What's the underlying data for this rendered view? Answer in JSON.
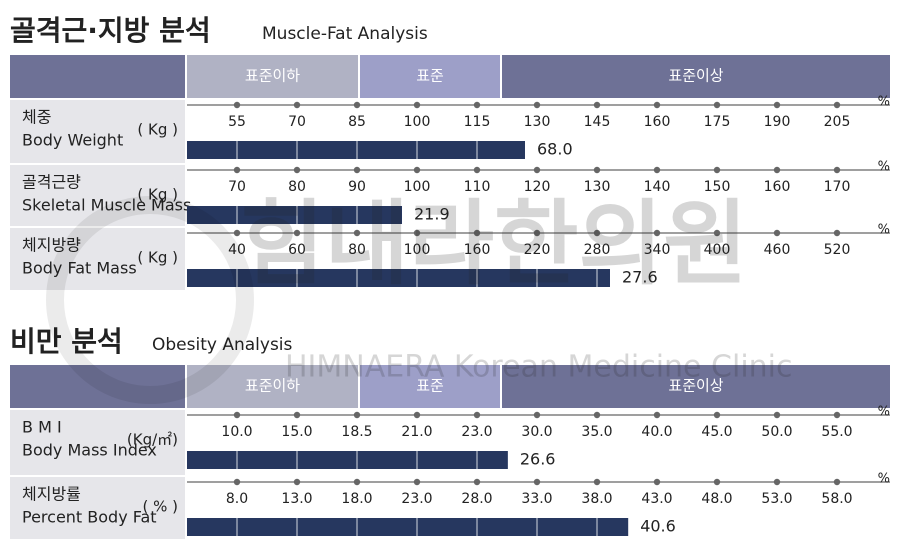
{
  "watermark": {
    "title": "힘내라한의원",
    "subtitle": "HIMNAERA Korean Medicine Clinic"
  },
  "percent_sign": "%",
  "sections": [
    {
      "title": "골격근·지방 분석",
      "subtitle": "Muscle-Fat Analysis",
      "header": [
        "표준이하",
        "표준",
        "표준이상"
      ],
      "rows": [
        {
          "name": "체중",
          "name_en": "Body Weight",
          "unit": "( Kg )",
          "ticks": [
            55,
            70,
            85,
            100,
            115,
            130,
            145,
            160,
            175,
            190,
            205
          ],
          "value": 68,
          "value_label": "68.0",
          "bar_percent": 127
        },
        {
          "name": "골격근량",
          "name_en": "Skeletal Muscle Mass",
          "unit": "( Kg )",
          "ticks": [
            70,
            80,
            90,
            100,
            110,
            120,
            130,
            140,
            150,
            160,
            170
          ],
          "value": 21.9,
          "bar_percent": 97.5
        },
        {
          "name": "체지방량",
          "name_en": "Body Fat Mass",
          "unit": "( Kg )",
          "ticks": [
            40,
            60,
            80,
            100,
            160,
            220,
            280,
            340,
            400,
            460,
            520
          ],
          "value": 27.6,
          "bar_percent": 293
        }
      ]
    },
    {
      "title": "비만 분석",
      "subtitle": "Obesity Analysis",
      "header": [
        "표준이하",
        "표준",
        "표준이상"
      ],
      "rows": [
        {
          "name": "B M I",
          "name_en": "Body Mass Index",
          "unit": "(Kg/㎡)",
          "ticks": [
            {
              "value": 10,
              "label": "10.0"
            },
            {
              "value": 15,
              "label": "15.0"
            },
            18.5,
            {
              "value": 21,
              "label": "21.0"
            },
            {
              "value": 23,
              "label": "23.0"
            },
            {
              "value": 30,
              "label": "30.0"
            },
            {
              "value": 35,
              "label": "35.0"
            },
            {
              "value": 40,
              "label": "40.0"
            },
            {
              "value": 45,
              "label": "45.0"
            },
            {
              "value": 50,
              "label": "50.0"
            },
            {
              "value": 55,
              "label": "55.0"
            }
          ],
          "value": 26.6
        },
        {
          "name": "체지방률",
          "name_en": "Percent Body Fat",
          "unit": "( % )",
          "ticks": [
            {
              "value": 8,
              "label": "8.0"
            },
            {
              "value": 13,
              "label": "13.0"
            },
            {
              "value": 18,
              "label": "18.0"
            },
            {
              "value": 23,
              "label": "23.0"
            },
            {
              "value": 28,
              "label": "28.0"
            },
            {
              "value": 33,
              "label": "33.0"
            },
            {
              "value": 38,
              "label": "38.0"
            },
            {
              "value": 43,
              "label": "43.0"
            },
            {
              "value": 48,
              "label": "48.0"
            },
            {
              "value": 53,
              "label": "53.0"
            },
            {
              "value": 58,
              "label": "58.0"
            }
          ],
          "value": 40.6
        }
      ]
    }
  ]
}
